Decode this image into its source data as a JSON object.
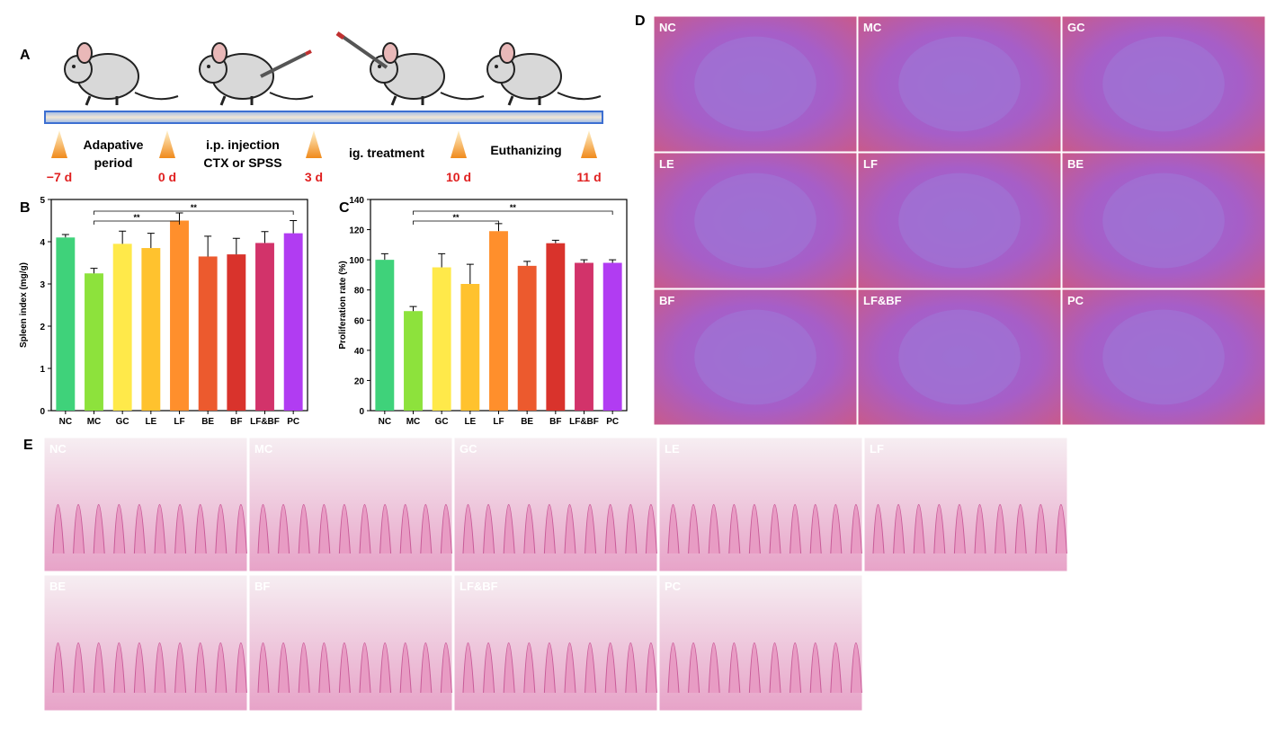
{
  "panel_labels": [
    "A",
    "B",
    "C",
    "D",
    "E"
  ],
  "timeline": {
    "days": [
      "−7 d",
      "0 d",
      "3 d",
      "10 d",
      "11 d"
    ],
    "phases": [
      [
        "Adapative",
        "period"
      ],
      [
        "i.p. injection",
        "CTX or SPSS"
      ],
      [
        "ig. treatment"
      ],
      [
        "Euthanizing"
      ]
    ]
  },
  "chart_data": [
    {
      "type": "bar",
      "y_label": "Spleen index (mg/g)",
      "categories": [
        "NC",
        "MC",
        "GC",
        "LE",
        "LF",
        "BE",
        "BF",
        "LF&BF",
        "PC"
      ],
      "values": [
        4.1,
        3.25,
        3.95,
        3.85,
        4.5,
        3.65,
        3.7,
        3.97,
        4.2
      ],
      "errors": [
        0.07,
        0.12,
        0.3,
        0.35,
        0.18,
        0.48,
        0.38,
        0.27,
        0.3
      ],
      "colors": [
        "#3fd27a",
        "#8de23c",
        "#ffe94a",
        "#ffc22e",
        "#ff8f2c",
        "#ec5a2e",
        "#d9332c",
        "#d2336a",
        "#b13cf2"
      ],
      "ylim": [
        0,
        5
      ],
      "yticks": [
        0,
        1,
        2,
        3,
        4,
        5
      ],
      "brackets": [
        {
          "from": 1,
          "to": 4,
          "text": "**"
        },
        {
          "from": 1,
          "to": 8,
          "text": "**"
        }
      ]
    },
    {
      "type": "bar",
      "y_label": "Proliferation rate (%)",
      "categories": [
        "NC",
        "MC",
        "GC",
        "LE",
        "LF",
        "BE",
        "BF",
        "LF&BF",
        "PC"
      ],
      "values": [
        100,
        66,
        95,
        84,
        119,
        96,
        111,
        98,
        98
      ],
      "errors": [
        4,
        3,
        9,
        13,
        5,
        3,
        2,
        2,
        2
      ],
      "colors": [
        "#3fd27a",
        "#8de23c",
        "#ffe94a",
        "#ffc22e",
        "#ff8f2c",
        "#ec5a2e",
        "#d9332c",
        "#d2336a",
        "#b13cf2"
      ],
      "ylim": [
        0,
        140
      ],
      "yticks": [
        0,
        20,
        40,
        60,
        80,
        100,
        120,
        140
      ],
      "brackets": [
        {
          "from": 1,
          "to": 4,
          "text": "**"
        },
        {
          "from": 1,
          "to": 8,
          "text": "**"
        }
      ]
    }
  ],
  "spleen_images": [
    "NC",
    "MC",
    "GC",
    "LE",
    "LF",
    "BE",
    "BF",
    "LF&BF",
    "PC"
  ],
  "intestine_images": [
    "NC",
    "MC",
    "GC",
    "LE",
    "LF",
    "BE",
    "BF",
    "LF&BF",
    "PC"
  ]
}
